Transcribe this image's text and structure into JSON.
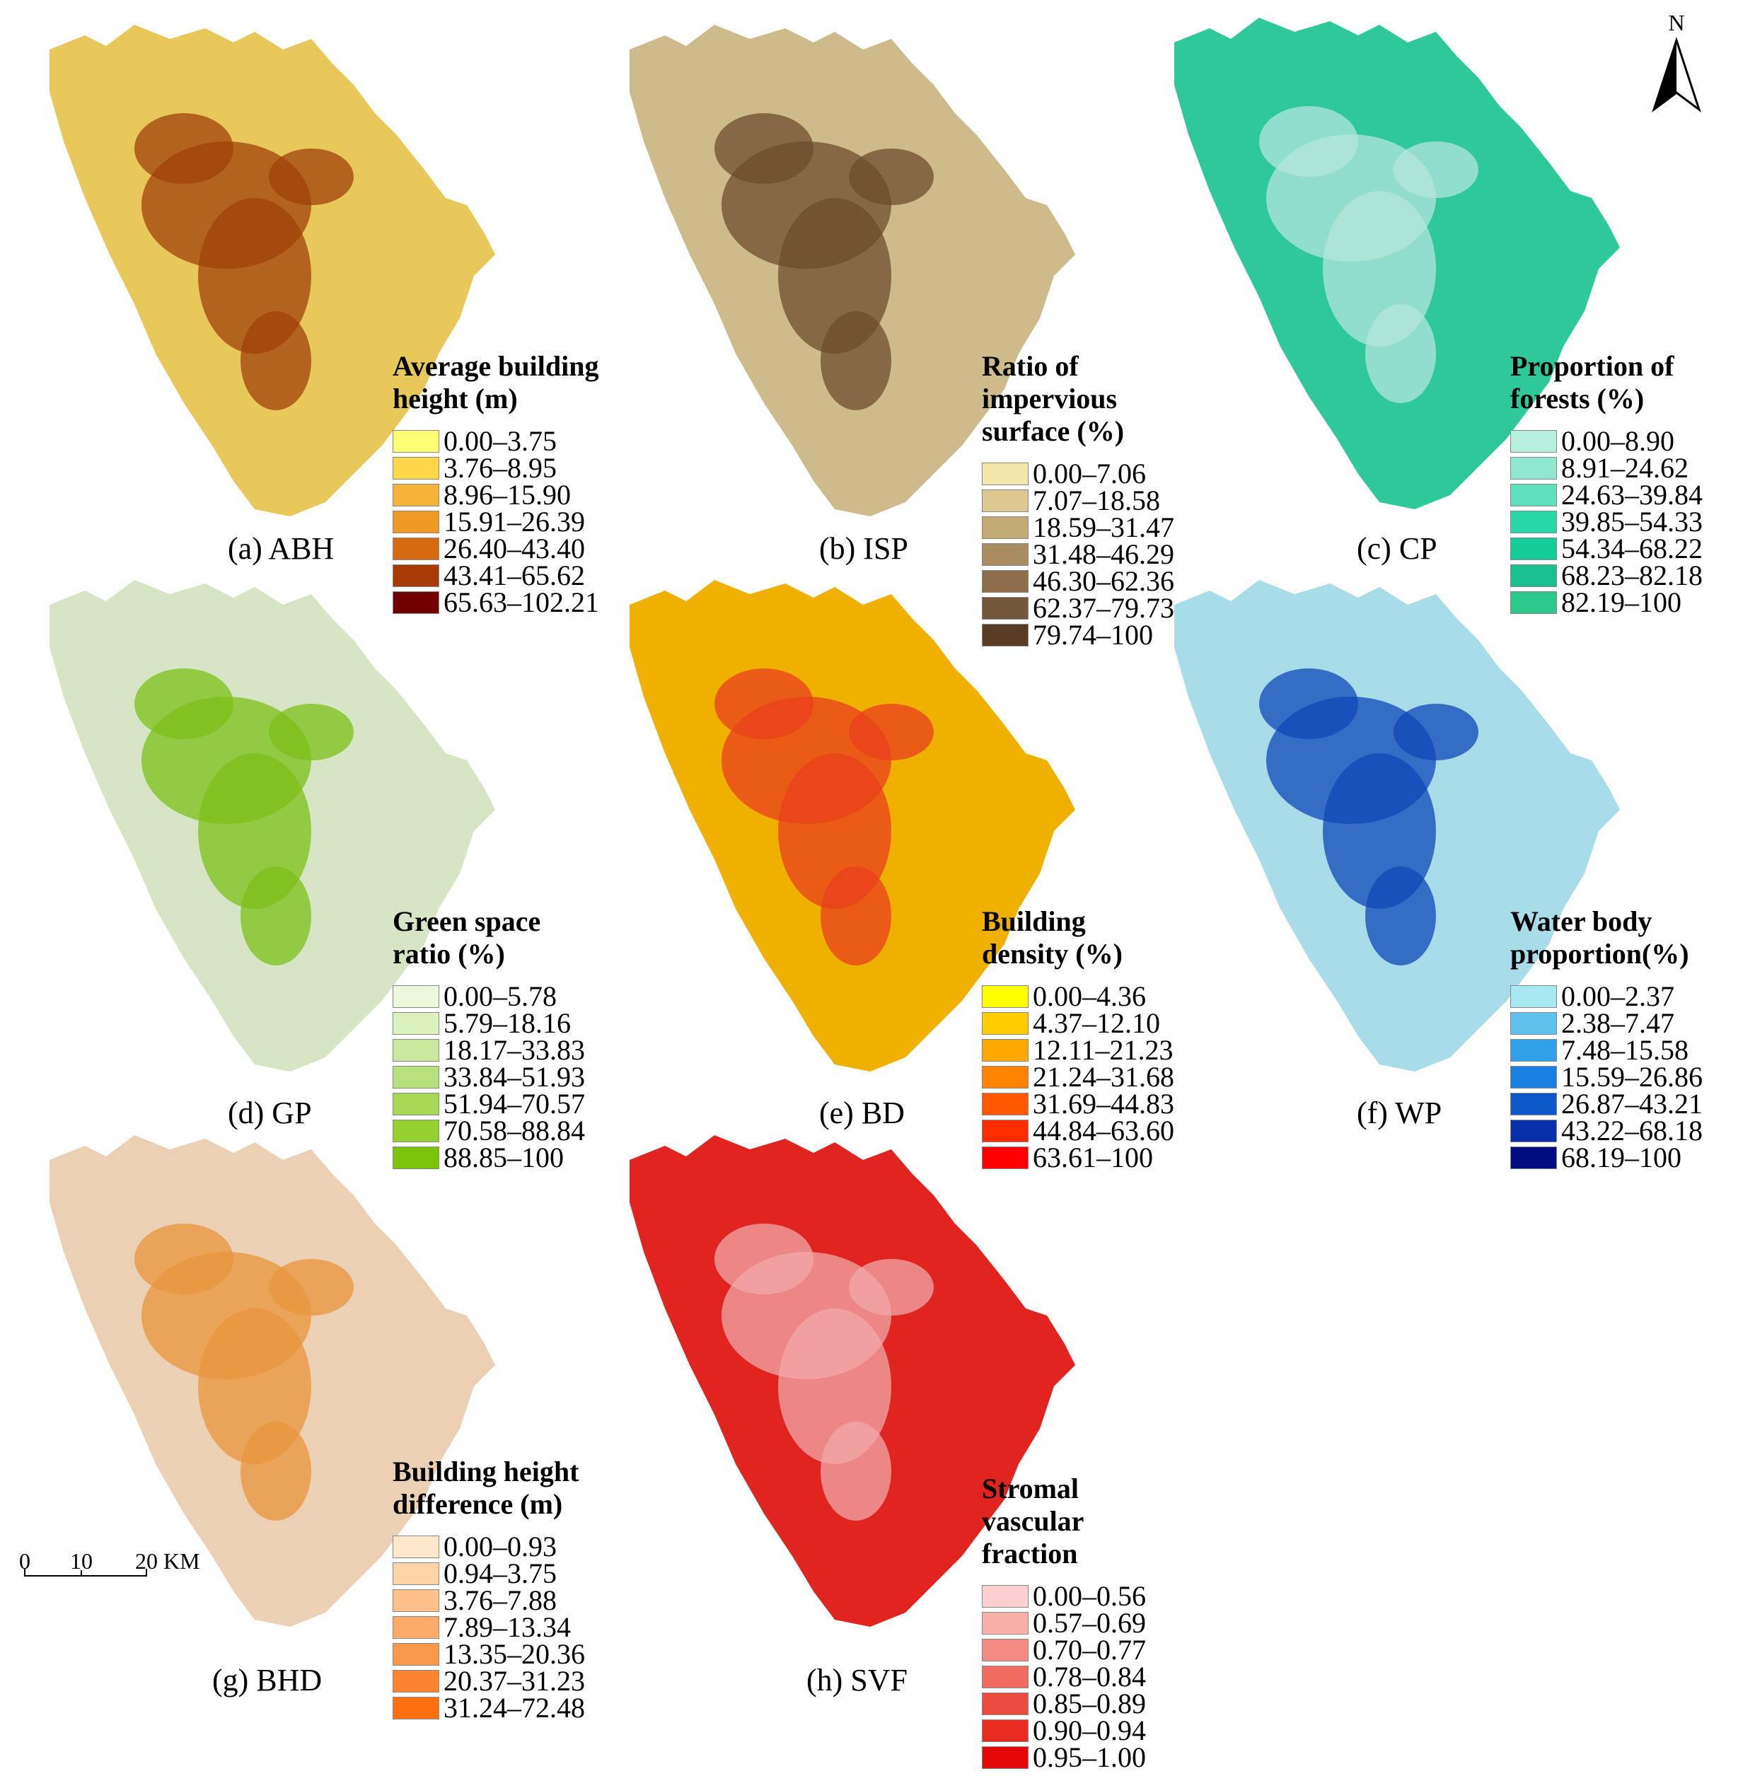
{
  "north_arrow": {
    "label": "N"
  },
  "scale_bar": {
    "ticks": [
      "0",
      "10",
      "20"
    ],
    "unit": "KM"
  },
  "panels": [
    {
      "id": "a",
      "caption": "(a) ABH",
      "legend_title": "Average building height (m)",
      "base_color": "#e8c85a",
      "hotspot_color": "#a0420a",
      "classes": [
        {
          "range": "0.00–3.75",
          "color": "#ffff73"
        },
        {
          "range": "3.76–8.95",
          "color": "#ffd84a"
        },
        {
          "range": "8.96–15.90",
          "color": "#f7b23a"
        },
        {
          "range": "15.91–26.39",
          "color": "#f09a26"
        },
        {
          "range": "26.40–43.40",
          "color": "#d66a10"
        },
        {
          "range": "43.41–65.62",
          "color": "#a83a06"
        },
        {
          "range": "65.63–102.21",
          "color": "#730000"
        }
      ]
    },
    {
      "id": "b",
      "caption": "(b) ISP",
      "legend_title": "Ratio of impervious\nsurface (%)",
      "base_color": "#cdbb8c",
      "hotspot_color": "#6e4c2c",
      "classes": [
        {
          "range": "0.00–7.06",
          "color": "#f2e6a8"
        },
        {
          "range": "7.07–18.58",
          "color": "#dcc890"
        },
        {
          "range": "18.59–31.47",
          "color": "#c3ab78"
        },
        {
          "range": "31.48–46.29",
          "color": "#a98c60"
        },
        {
          "range": "46.30–62.36",
          "color": "#8e6e4a"
        },
        {
          "range": "62.37–79.73",
          "color": "#74563a"
        },
        {
          "range": "79.74–100",
          "color": "#5a3c24"
        }
      ]
    },
    {
      "id": "c",
      "caption": "(c) CP",
      "legend_title": "Proportion of\nforests (%)",
      "base_color": "#2ec89a",
      "hotspot_color": "#b4e6dc",
      "classes": [
        {
          "range": "0.00–8.90",
          "color": "#b8f0e0"
        },
        {
          "range": "8.91–24.62",
          "color": "#90e8d0"
        },
        {
          "range": "24.63–39.84",
          "color": "#5ee0bc"
        },
        {
          "range": "39.85–54.33",
          "color": "#28d8a8"
        },
        {
          "range": "54.34–68.22",
          "color": "#14cc98"
        },
        {
          "range": "68.23–82.18",
          "color": "#1cc090"
        },
        {
          "range": "82.19–100",
          "color": "#2cc88c"
        }
      ]
    },
    {
      "id": "d",
      "caption": "(d) GP",
      "legend_title": "Green space ratio (%)",
      "base_color": "#d6e6c4",
      "hotspot_color": "#7cc018",
      "classes": [
        {
          "range": "0.00–5.78",
          "color": "#ecf8dc"
        },
        {
          "range": "5.79–18.16",
          "color": "#dcf2bc"
        },
        {
          "range": "18.17–33.83",
          "color": "#cce89c"
        },
        {
          "range": "33.84–51.93",
          "color": "#b8e07c"
        },
        {
          "range": "51.94–70.57",
          "color": "#a8d858"
        },
        {
          "range": "70.58–88.84",
          "color": "#94d030"
        },
        {
          "range": "88.85–100",
          "color": "#7cc40c"
        }
      ]
    },
    {
      "id": "e",
      "caption": "(e) BD",
      "legend_title": "Building density (%)",
      "base_color": "#f0b000",
      "hotspot_color": "#e8401c",
      "classes": [
        {
          "range": "0.00–4.36",
          "color": "#ffff00"
        },
        {
          "range": "4.37–12.10",
          "color": "#ffcc00"
        },
        {
          "range": "12.11–21.23",
          "color": "#ffa800"
        },
        {
          "range": "21.24–31.68",
          "color": "#ff8400"
        },
        {
          "range": "31.69–44.83",
          "color": "#ff5800"
        },
        {
          "range": "44.84–63.60",
          "color": "#ff2c00"
        },
        {
          "range": "63.61–100",
          "color": "#ff0000"
        }
      ]
    },
    {
      "id": "f",
      "caption": "(f) WP",
      "legend_title": "Water body\nproportion(%)",
      "base_color": "#a8dce8",
      "hotspot_color": "#1048b8",
      "classes": [
        {
          "range": "0.00–2.37",
          "color": "#a8e8f0"
        },
        {
          "range": "2.38–7.47",
          "color": "#60c0ec"
        },
        {
          "range": "7.48–15.58",
          "color": "#30a0e8"
        },
        {
          "range": "15.59–26.86",
          "color": "#1880e0"
        },
        {
          "range": "26.87–43.21",
          "color": "#0c58c8"
        },
        {
          "range": "43.22–68.18",
          "color": "#0830a8"
        },
        {
          "range": "68.19–100",
          "color": "#000c80"
        }
      ]
    },
    {
      "id": "g",
      "caption": "(g) BHD",
      "legend_title": "Building height\ndifference (m)",
      "base_color": "#ecd0b4",
      "hotspot_color": "#e8963c",
      "classes": [
        {
          "range": "0.00–0.93",
          "color": "#fde8cc"
        },
        {
          "range": "0.94–3.75",
          "color": "#fcd4a8"
        },
        {
          "range": "3.76–7.88",
          "color": "#fcc088"
        },
        {
          "range": "7.89–13.34",
          "color": "#fcac68"
        },
        {
          "range": "13.35–20.36",
          "color": "#fc984c"
        },
        {
          "range": "20.37–31.23",
          "color": "#fc8430"
        },
        {
          "range": "31.24–72.48",
          "color": "#fc7010"
        }
      ]
    },
    {
      "id": "h",
      "caption": "(h) SVF",
      "legend_title": "Stromal vascular fraction",
      "base_color": "#e02420",
      "hotspot_color": "#f2a8a8",
      "classes": [
        {
          "range": "0.00–0.56",
          "color": "#fcd0d0"
        },
        {
          "range": "0.57–0.69",
          "color": "#f8b0aa"
        },
        {
          "range": "0.70–0.77",
          "color": "#f48c84"
        },
        {
          "range": "0.78–0.84",
          "color": "#f06c60"
        },
        {
          "range": "0.85–0.89",
          "color": "#ec4c40"
        },
        {
          "range": "0.90–0.94",
          "color": "#e82c20"
        },
        {
          "range": "0.95–1.00",
          "color": "#e40808"
        }
      ]
    }
  ]
}
